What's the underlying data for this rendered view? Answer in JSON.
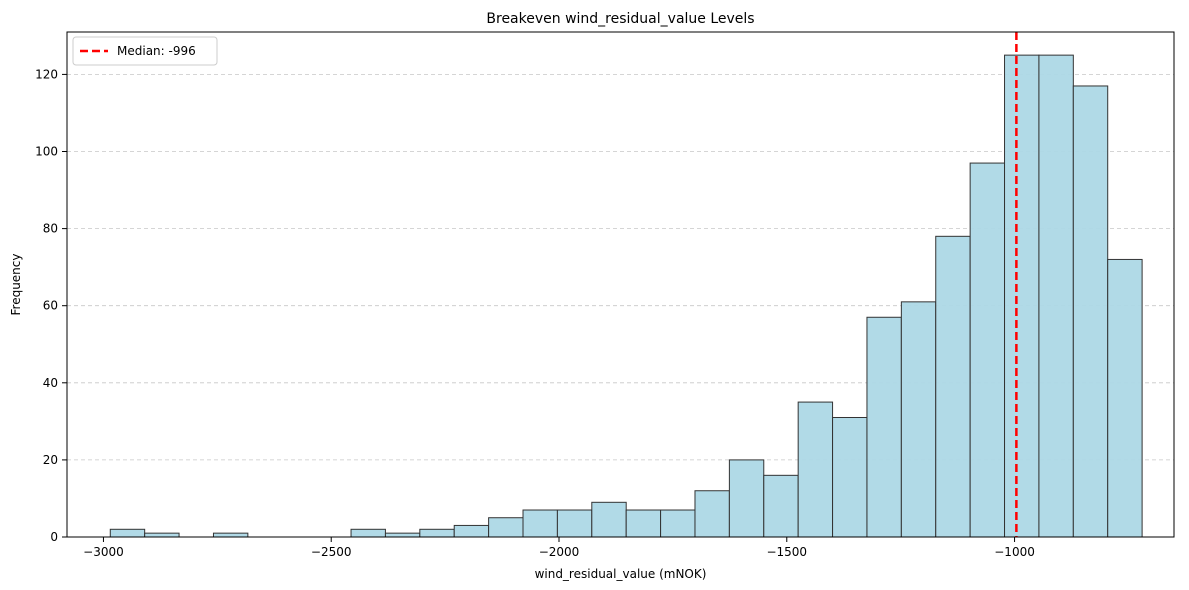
{
  "chart_data": {
    "type": "histogram",
    "title": "Breakeven wind_residual_value  Levels",
    "xlabel": "wind_residual_value (mNOK)",
    "ylabel": "Frequency",
    "xlim": [
      -3080,
      -650
    ],
    "ylim": [
      0,
      131
    ],
    "xticks": [
      -3000,
      -2500,
      -2000,
      -1500,
      -1000
    ],
    "xtick_labels": [
      "−3000",
      "−2500",
      "−2000",
      "−1500",
      "−1000"
    ],
    "yticks": [
      0,
      20,
      40,
      60,
      80,
      100,
      120
    ],
    "ytick_labels": [
      "0",
      "20",
      "40",
      "60",
      "80",
      "100",
      "120"
    ],
    "grid": "y-dashed",
    "bin_start": -2985,
    "bin_width": 75.5,
    "values": [
      2,
      1,
      0,
      1,
      0,
      0,
      0,
      2,
      1,
      2,
      3,
      5,
      7,
      7,
      9,
      7,
      7,
      12,
      20,
      16,
      35,
      31,
      57,
      61,
      78,
      97,
      125,
      125,
      117,
      72
    ],
    "bar_color": "#add8e6",
    "bar_edge_color": "#333333",
    "median": {
      "value": -996,
      "color": "#ff0000",
      "style": "dashed",
      "label": "Median: -996"
    },
    "legend": {
      "position": "top-left",
      "entries": [
        "Median: -996"
      ]
    }
  }
}
